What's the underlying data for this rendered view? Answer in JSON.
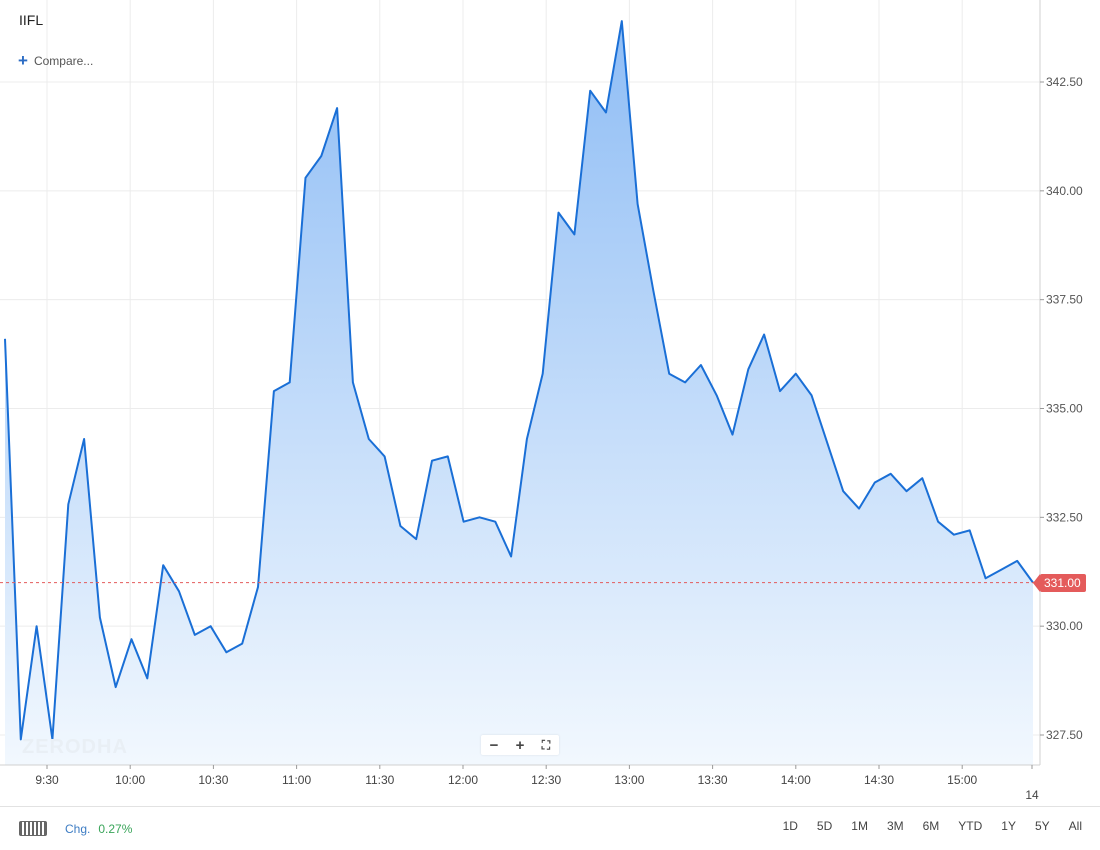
{
  "header": {
    "symbol": "IIFL",
    "compare_label": "Compare..."
  },
  "watermark": "ZERODHA",
  "zoom": {
    "minus": "−",
    "plus": "+",
    "fullscreen": "⛶"
  },
  "bottom_bar": {
    "chg_label": "Chg.",
    "chg_value": "0.27%",
    "ranges": [
      "1D",
      "5D",
      "1M",
      "3M",
      "6M",
      "YTD",
      "1Y",
      "5Y",
      "All"
    ]
  },
  "colors": {
    "line": "#1a6fd6",
    "fill_top": "#8fbdf5",
    "fill_bottom": "#f2f8fe",
    "ref_line": "#e45b5b",
    "price_tag": "#e45b5b"
  },
  "chart_data": {
    "type": "area",
    "series": [
      {
        "values": [
          336.6,
          327.4,
          330.0,
          327.4,
          332.8,
          334.3,
          330.2,
          328.6,
          329.7,
          328.8,
          331.4,
          330.8,
          329.8,
          330.0,
          329.4,
          329.6,
          330.9,
          335.4,
          335.6,
          340.3,
          340.8,
          341.9,
          335.6,
          334.3,
          333.9,
          332.3,
          332.0,
          333.8,
          333.9,
          332.4,
          332.5,
          332.4,
          331.6,
          334.3,
          335.8,
          339.5,
          339.0,
          342.3,
          341.8,
          343.9,
          339.7,
          337.7,
          335.8,
          335.6,
          336.0,
          335.3,
          334.4,
          335.9,
          336.7,
          335.4,
          335.8,
          335.3,
          334.2,
          333.1,
          332.7,
          333.3,
          333.5,
          333.1,
          333.4,
          332.4,
          332.1,
          332.2,
          331.1,
          331.3,
          331.5,
          331.0
        ],
        "time_start": "09:12",
        "interval_minutes": 5
      }
    ],
    "x_ticks": [
      "9:30",
      "10:00",
      "10:30",
      "11:00",
      "11:30",
      "12:00",
      "12:30",
      "13:00",
      "13:30",
      "14:00",
      "14:30",
      "15:00",
      "14"
    ],
    "y_ticks": [
      "327.50",
      "330.00",
      "332.50",
      "335.00",
      "337.50",
      "340.00",
      "342.50"
    ],
    "ylim": [
      326.8,
      344.4
    ],
    "last_price": 331.0,
    "last_price_label": "331.00",
    "grid": true
  }
}
